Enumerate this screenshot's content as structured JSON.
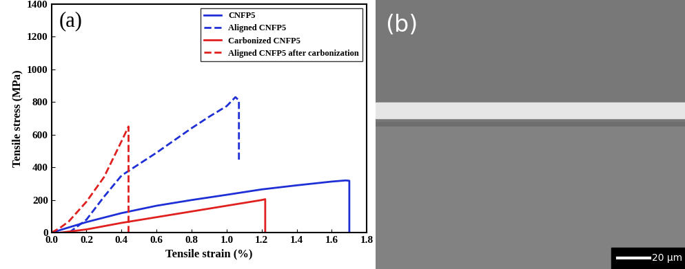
{
  "chart_data": {
    "type": "line",
    "annotations": [
      "(a)"
    ],
    "x_label": "Tensile strain (%)",
    "y_label": "Tensile stress (MPa)",
    "xlim": [
      0,
      1.8
    ],
    "xticks": [
      {
        "value": 0,
        "label": "0.0"
      },
      {
        "value": 0.2,
        "label": "0.2"
      },
      {
        "value": 0.4,
        "label": "0.4"
      },
      {
        "value": 0.6,
        "label": "0.6"
      },
      {
        "value": 0.8,
        "label": "0.8"
      },
      {
        "value": 1,
        "label": "1.0"
      },
      {
        "value": 1.2,
        "label": "1.2"
      },
      {
        "value": 1.4,
        "label": "1.4"
      },
      {
        "value": 1.6,
        "label": "1.6"
      },
      {
        "value": 1.8,
        "label": "1.8"
      }
    ],
    "ylim": [
      0,
      1400
    ],
    "yticks": [
      0,
      200,
      400,
      600,
      800,
      1000,
      1200,
      1400
    ],
    "legend": "upper right",
    "series": [
      {
        "name": "CNFP5",
        "color": "#1f2fd6",
        "line_style": "solid",
        "x": [
          0,
          0.2,
          0.4,
          0.6,
          0.8,
          1.0,
          1.2,
          1.4,
          1.6,
          1.68,
          1.7,
          1.7
        ],
        "values": [
          0,
          65,
          120,
          165,
          200,
          232,
          265,
          290,
          313,
          320,
          318,
          0
        ]
      },
      {
        "name": "Aligned CNFP5",
        "color": "#1f2fd6",
        "line_style": "dashed",
        "x": [
          0.1,
          0.2,
          0.3,
          0.4,
          0.5,
          0.6,
          0.7,
          0.8,
          0.9,
          1.0,
          1.05,
          1.07,
          1.07
        ],
        "values": [
          0,
          80,
          220,
          350,
          420,
          490,
          565,
          640,
          710,
          775,
          830,
          810,
          440
        ]
      },
      {
        "name": "Carbonized CNFP5",
        "color": "#e01f1f",
        "line_style": "solid",
        "x": [
          0.05,
          0.2,
          0.4,
          0.6,
          0.8,
          1.0,
          1.2,
          1.22,
          1.22
        ],
        "values": [
          0,
          20,
          60,
          95,
          130,
          165,
          200,
          205,
          0
        ]
      },
      {
        "name": "Aligned CNFP5 after carbonization",
        "color": "#e01f1f",
        "line_style": "dashed",
        "x": [
          0,
          0.05,
          0.1,
          0.2,
          0.3,
          0.4,
          0.44,
          0.44
        ],
        "values": [
          0,
          30,
          70,
          190,
          340,
          560,
          650,
          0
        ]
      }
    ]
  },
  "image_panel": {
    "label": "(b)",
    "scale_bar": "20 μm"
  }
}
